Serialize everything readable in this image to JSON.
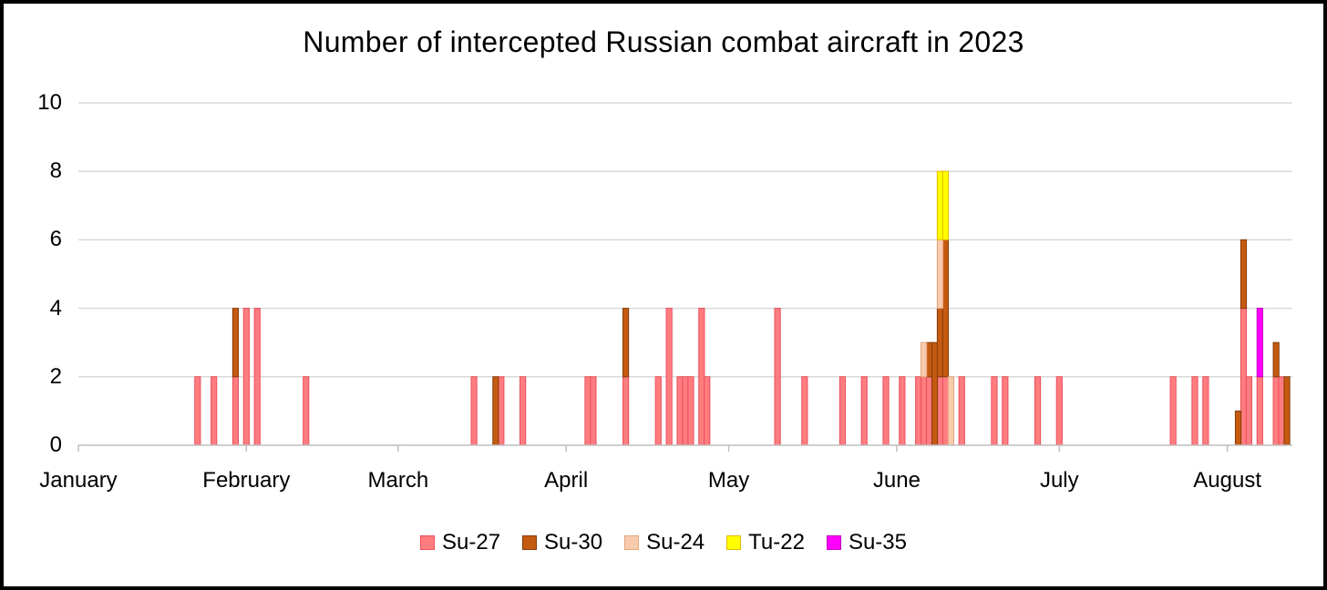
{
  "chart_data": {
    "type": "bar",
    "stacked": true,
    "title": "Number of intercepted Russian combat aircraft in 2023",
    "xlabel": "",
    "ylabel": "",
    "ylim": [
      0,
      10
    ],
    "yticks": [
      "0",
      "2",
      "4",
      "6",
      "8",
      "10"
    ],
    "months": [
      "January",
      "February",
      "March",
      "April",
      "May",
      "June",
      "July",
      "August"
    ],
    "month_start_day": [
      1,
      32,
      60,
      91,
      121,
      152,
      182,
      213
    ],
    "xlim_days": [
      1,
      225
    ],
    "grid": true,
    "legend_position": "bottom",
    "series": [
      {
        "name": "Su-27",
        "color": "#ff7c80",
        "border": "#e8505a",
        "points": [
          [
            23,
            2
          ],
          [
            26,
            2
          ],
          [
            30,
            2
          ],
          [
            32,
            4
          ],
          [
            34,
            4
          ],
          [
            43,
            2
          ],
          [
            74,
            2
          ],
          [
            79,
            2
          ],
          [
            83,
            2
          ],
          [
            95,
            2
          ],
          [
            96,
            2
          ],
          [
            102,
            2
          ],
          [
            108,
            2
          ],
          [
            110,
            4
          ],
          [
            112,
            2
          ],
          [
            113,
            2
          ],
          [
            114,
            2
          ],
          [
            116,
            4
          ],
          [
            117,
            2
          ],
          [
            130,
            4
          ],
          [
            135,
            2
          ],
          [
            142,
            2
          ],
          [
            146,
            2
          ],
          [
            150,
            2
          ],
          [
            153,
            2
          ],
          [
            156,
            2
          ],
          [
            157,
            2
          ],
          [
            158,
            2
          ],
          [
            160,
            2
          ],
          [
            161,
            2
          ],
          [
            164,
            2
          ],
          [
            170,
            2
          ],
          [
            172,
            2
          ],
          [
            178,
            2
          ],
          [
            182,
            2
          ],
          [
            203,
            2
          ],
          [
            207,
            2
          ],
          [
            209,
            2
          ],
          [
            216,
            4
          ],
          [
            217,
            2
          ],
          [
            219,
            2
          ],
          [
            222,
            2
          ],
          [
            223,
            2
          ]
        ]
      },
      {
        "name": "Su-30",
        "color": "#c55a11",
        "border": "#843c0c",
        "points": [
          [
            30,
            2
          ],
          [
            78,
            2
          ],
          [
            102,
            2
          ],
          [
            158,
            1
          ],
          [
            159,
            3
          ],
          [
            160,
            2
          ],
          [
            161,
            4
          ],
          [
            215,
            1
          ],
          [
            216,
            2
          ],
          [
            222,
            1
          ],
          [
            224,
            2
          ]
        ]
      },
      {
        "name": "Su-24",
        "color": "#f8cbad",
        "border": "#e3a57b",
        "points": [
          [
            157,
            1
          ],
          [
            160,
            2
          ],
          [
            162,
            2
          ]
        ]
      },
      {
        "name": "Tu-22",
        "color": "#ffff00",
        "border": "#e6b800",
        "points": [
          [
            160,
            2
          ],
          [
            161,
            2
          ]
        ]
      },
      {
        "name": "Su-35",
        "color": "#ff00ff",
        "border": "#c000c0",
        "points": [
          [
            219,
            2
          ]
        ]
      }
    ]
  }
}
